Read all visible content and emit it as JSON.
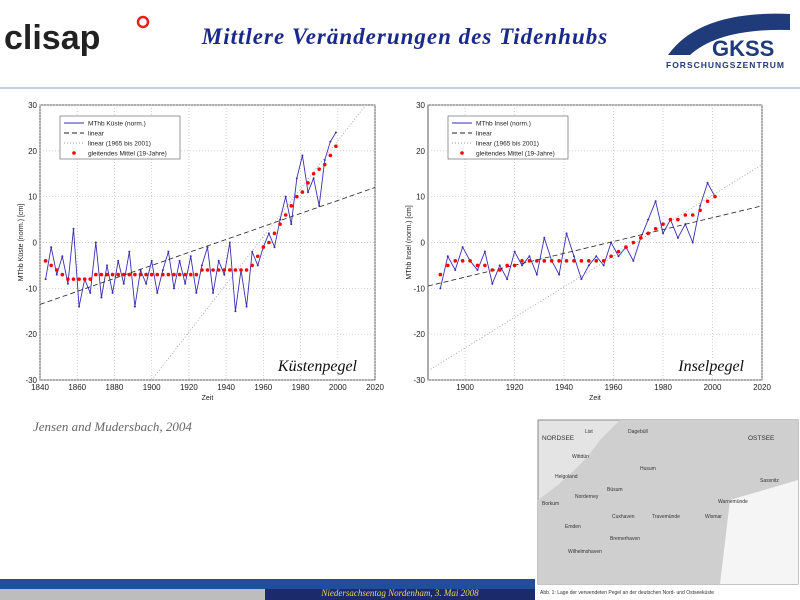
{
  "header": {
    "logo_left": "clisap",
    "title": "Mittlere Veränderungen des Tidenhubs",
    "logo_right": "GKSS",
    "logo_right_sub": "FORSCHUNGSZENTRUM"
  },
  "citation": "Jensen and Mudersbach, 2004",
  "footer": "Niedersachsentag Nordenham, 3. Mai 2008",
  "map": {
    "labels": [
      "NORDSEE",
      "OSTSEE",
      "List",
      "Dagebüll",
      "Wittdün",
      "Husum",
      "Helgoland",
      "Büsum",
      "Norderney",
      "Borkum",
      "Emden",
      "Cuxhaven",
      "Bremerhaven",
      "Wilhelmshaven",
      "Travemünde",
      "Wismar",
      "Warnemünde",
      "Sassnitz"
    ],
    "caption": "Abb. 1: Lage der verwendeten Pegel an der deutschen Nord- und Ostseeküste"
  },
  "chart_data": [
    {
      "type": "line",
      "annotation": "Küstenpegel",
      "x_label": "Zeit",
      "y_label": "MThb Küste (norm.) [cm]",
      "xlim": [
        1840,
        2020
      ],
      "xticks": [
        1840,
        1860,
        1880,
        1900,
        1920,
        1940,
        1960,
        1980,
        2000,
        2020
      ],
      "ylim": [
        -30,
        30
      ],
      "yticks": [
        -30,
        -20,
        -10,
        0,
        10,
        20,
        30
      ],
      "grid": true,
      "legend": "upper left",
      "series": [
        {
          "name": "MThb Küste (norm.)",
          "color": "#3a2fb0",
          "style": "solid",
          "x": [
            1843,
            1846,
            1849,
            1852,
            1855,
            1858,
            1861,
            1864,
            1867,
            1870,
            1873,
            1876,
            1879,
            1882,
            1885,
            1888,
            1891,
            1894,
            1897,
            1900,
            1903,
            1906,
            1909,
            1912,
            1915,
            1918,
            1921,
            1924,
            1927,
            1930,
            1933,
            1936,
            1939,
            1942,
            1945,
            1948,
            1951,
            1954,
            1957,
            1960,
            1963,
            1966,
            1969,
            1972,
            1975,
            1978,
            1981,
            1984,
            1987,
            1990,
            1993,
            1996,
            1999
          ],
          "values": [
            -8,
            -1,
            -7,
            -3,
            -9,
            3,
            -14,
            -8,
            -11,
            0,
            -12,
            -5,
            -11,
            -4,
            -9,
            -2,
            -14,
            -6,
            -9,
            -4,
            -11,
            -6,
            -2,
            -10,
            -4,
            -9,
            -3,
            -11,
            -5,
            -1,
            -11,
            -4,
            -7,
            0,
            -15,
            -6,
            -14,
            -2,
            -5,
            -1,
            2,
            -1,
            5,
            10,
            4,
            14,
            19,
            11,
            14,
            8,
            18,
            22,
            24
          ]
        },
        {
          "name": "linear",
          "color": "#222222",
          "style": "dashed",
          "x": [
            1840,
            2020
          ],
          "values": [
            -13.5,
            12
          ]
        },
        {
          "name": "linear (1965 bis 2001)",
          "color": "#999999",
          "style": "dotted",
          "x": [
            1900,
            2015
          ],
          "values": [
            -30,
            30
          ]
        },
        {
          "name": "gleitendes Mittel (19-Jahre)",
          "color": "#ff0000",
          "style": "dots",
          "x": [
            1843,
            1846,
            1849,
            1852,
            1855,
            1858,
            1861,
            1864,
            1867,
            1870,
            1873,
            1876,
            1879,
            1882,
            1885,
            1888,
            1891,
            1894,
            1897,
            1900,
            1903,
            1906,
            1909,
            1912,
            1915,
            1918,
            1921,
            1924,
            1927,
            1930,
            1933,
            1936,
            1939,
            1942,
            1945,
            1948,
            1951,
            1954,
            1957,
            1960,
            1963,
            1966,
            1969,
            1972,
            1975,
            1978,
            1981,
            1984,
            1987,
            1990,
            1993,
            1996,
            1999
          ],
          "values": [
            -4,
            -5,
            -6,
            -7,
            -8,
            -8,
            -8,
            -8,
            -8,
            -7,
            -7,
            -7,
            -7,
            -7,
            -7,
            -7,
            -7,
            -7,
            -7,
            -7,
            -7,
            -7,
            -7,
            -7,
            -7,
            -7,
            -7,
            -7,
            -6,
            -6,
            -6,
            -6,
            -6,
            -6,
            -6,
            -6,
            -6,
            -5,
            -3,
            -1,
            0,
            2,
            4,
            6,
            8,
            10,
            11,
            13,
            15,
            16,
            17,
            19,
            21
          ]
        }
      ]
    },
    {
      "type": "line",
      "annotation": "Inselpegel",
      "x_label": "Zeit",
      "y_label": "MThb Insel (norm.) [cm]",
      "xlim": [
        1885,
        2020
      ],
      "xticks": [
        1900,
        1920,
        1940,
        1960,
        1980,
        2000,
        2020
      ],
      "ylim": [
        -30,
        30
      ],
      "yticks": [
        -30,
        -20,
        -10,
        0,
        10,
        20,
        30
      ],
      "grid": true,
      "legend": "upper left",
      "series": [
        {
          "name": "MThb Insel (norm.)",
          "color": "#3a2fb0",
          "style": "solid",
          "x": [
            1890,
            1893,
            1896,
            1899,
            1902,
            1905,
            1908,
            1911,
            1914,
            1917,
            1920,
            1923,
            1926,
            1929,
            1932,
            1935,
            1938,
            1941,
            1944,
            1947,
            1950,
            1953,
            1956,
            1959,
            1962,
            1965,
            1968,
            1971,
            1974,
            1977,
            1980,
            1983,
            1986,
            1989,
            1992,
            1995,
            1998,
            2001
          ],
          "values": [
            -10,
            -3,
            -6,
            -1,
            -4,
            -6,
            -2,
            -9,
            -5,
            -8,
            -2,
            -5,
            -3,
            -7,
            1,
            -4,
            -7,
            2,
            -3,
            -8,
            -5,
            -3,
            -5,
            0,
            -3,
            -1,
            -4,
            1,
            5,
            9,
            2,
            5,
            1,
            4,
            0,
            8,
            13,
            10
          ]
        },
        {
          "name": "linear",
          "color": "#222222",
          "style": "dashed",
          "x": [
            1885,
            2020
          ],
          "values": [
            -9.5,
            8
          ]
        },
        {
          "name": "linear (1965 bis 2001)",
          "color": "#999999",
          "style": "dotted",
          "x": [
            1885,
            2020
          ],
          "values": [
            -28,
            17
          ]
        },
        {
          "name": "gleitendes Mittel (19-Jahre)",
          "color": "#ff0000",
          "style": "dots",
          "x": [
            1890,
            1893,
            1896,
            1899,
            1902,
            1905,
            1908,
            1911,
            1914,
            1917,
            1920,
            1923,
            1926,
            1929,
            1932,
            1935,
            1938,
            1941,
            1944,
            1947,
            1950,
            1953,
            1956,
            1959,
            1962,
            1965,
            1968,
            1971,
            1974,
            1977,
            1980,
            1983,
            1986,
            1989,
            1992,
            1995,
            1998,
            2001
          ],
          "values": [
            -7,
            -5,
            -4,
            -4,
            -4,
            -5,
            -5,
            -6,
            -6,
            -5,
            -5,
            -4,
            -4,
            -4,
            -4,
            -4,
            -4,
            -4,
            -4,
            -4,
            -4,
            -4,
            -4,
            -3,
            -2,
            -1,
            0,
            1,
            2,
            3,
            4,
            5,
            5,
            6,
            6,
            7,
            9,
            10
          ]
        }
      ]
    }
  ]
}
